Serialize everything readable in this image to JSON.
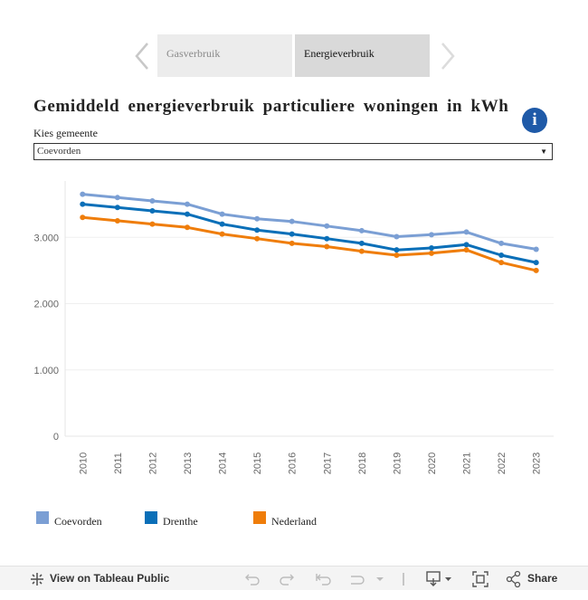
{
  "tabs": [
    {
      "label": "Gasverbruik"
    },
    {
      "label": "Energieverbruik"
    }
  ],
  "title": "Gemiddeld energieverbruik particuliere woningen in kWh",
  "filter": {
    "label": "Kies gemeente",
    "value": "Coevorden"
  },
  "footer": {
    "view_label": "View on Tableau Public",
    "share_label": "Share"
  },
  "colors": {
    "Coevorden": "#7b9fd4",
    "Drenthe": "#0a6fb8",
    "Nederland": "#ef7d0a"
  },
  "chart_data": {
    "type": "line",
    "x": [
      "2010",
      "2011",
      "2012",
      "2013",
      "2014",
      "2015",
      "2016",
      "2017",
      "2018",
      "2019",
      "2020",
      "2021",
      "2022",
      "2023"
    ],
    "y_ticks": [
      "0",
      "1.000",
      "2.000",
      "3.000"
    ],
    "ylim": [
      0,
      3850
    ],
    "grid": true,
    "legend_position": "bottom",
    "series": [
      {
        "name": "Coevorden",
        "values": [
          3650,
          3600,
          3550,
          3500,
          3350,
          3280,
          3240,
          3170,
          3100,
          3010,
          3040,
          3080,
          2910,
          2820
        ]
      },
      {
        "name": "Drenthe",
        "values": [
          3500,
          3450,
          3400,
          3350,
          3200,
          3110,
          3050,
          2980,
          2910,
          2810,
          2840,
          2890,
          2730,
          2620
        ]
      },
      {
        "name": "Nederland",
        "values": [
          3300,
          3250,
          3200,
          3150,
          3050,
          2980,
          2910,
          2860,
          2790,
          2730,
          2760,
          2810,
          2620,
          2500
        ]
      }
    ]
  }
}
